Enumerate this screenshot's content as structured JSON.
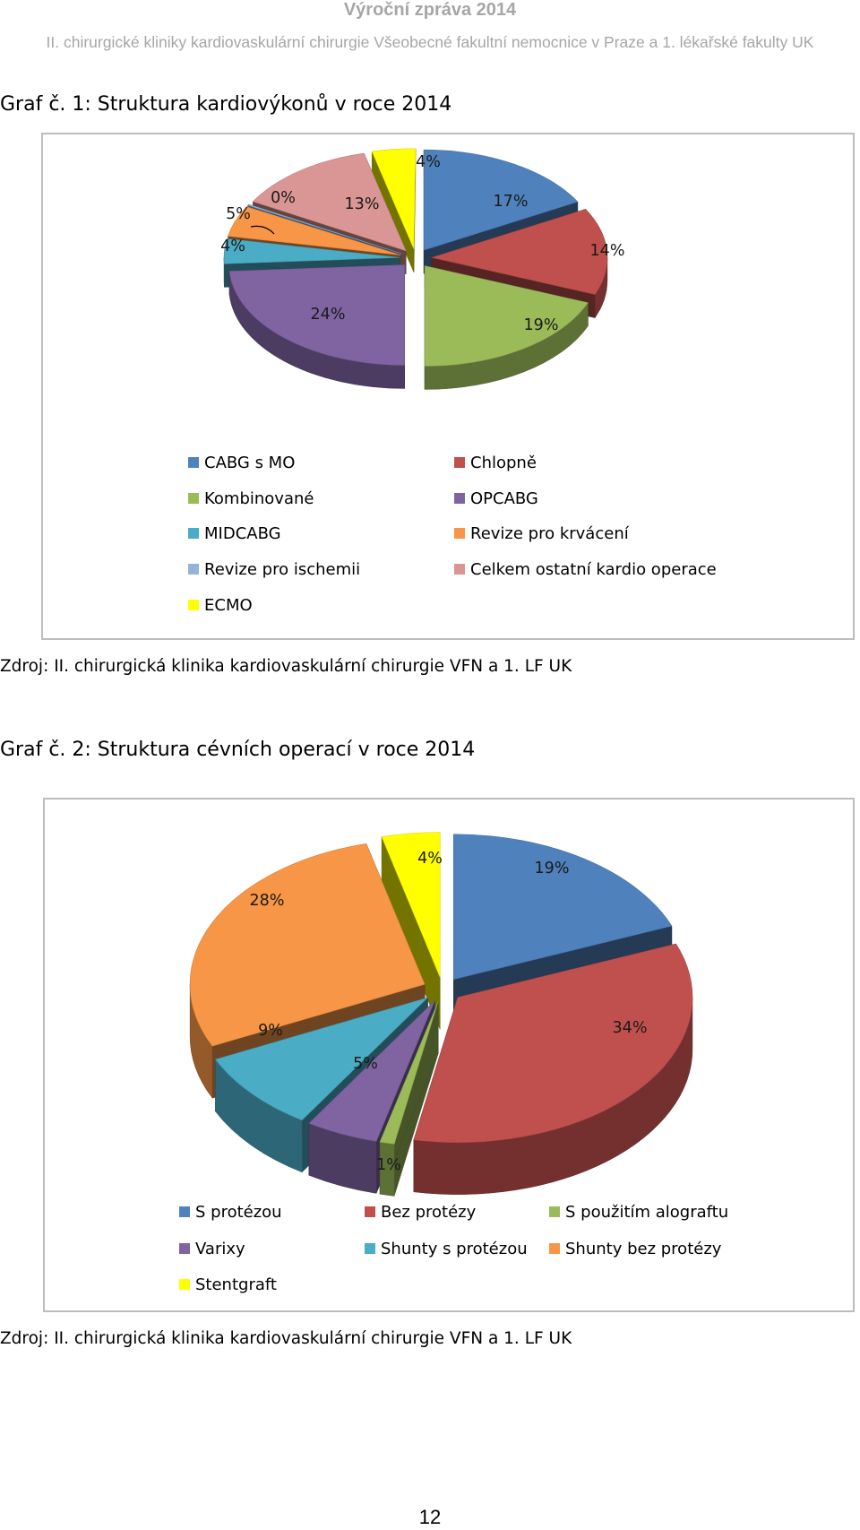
{
  "header": {
    "title": "Výroční zpráva 2014",
    "subtitle": "II. chirurgické kliniky kardiovaskulární chirurgie Všeobecné fakultní nemocnice v Praze a 1. lékařské fakulty UK"
  },
  "chart1": {
    "caption": "Graf č. 1: Struktura kardiovýkonů v roce 2014",
    "source": "Zdroj: II. chirurgická klinika kardiovaskulární chirurgie VFN a 1. LF UK"
  },
  "chart2": {
    "caption": "Graf č. 2: Struktura cévních operací v roce 2014",
    "source": "Zdroj: II. chirurgická klinika kardiovaskulární chirurgie VFN a 1. LF UK"
  },
  "page_number": "12",
  "chart_data": [
    {
      "type": "pie",
      "style": "3d-exploded",
      "title": "Graf č. 1: Struktura kardiovýkonů v roce 2014",
      "legend_position": "bottom",
      "categories": [
        "CABG s MO",
        "Chlopně",
        "Kombinované",
        "OPCABG",
        "MIDCABG",
        "Revize pro krvácení",
        "Revize pro ischemii",
        "Celkem ostatní kardio operace",
        "ECMO"
      ],
      "values": [
        17,
        14,
        19,
        24,
        4,
        5,
        0,
        13,
        4
      ],
      "labels": [
        "17%",
        "14%",
        "19%",
        "24%",
        "4%",
        "5%",
        "0%",
        "13%",
        "4%"
      ],
      "colors": [
        "#4f81bd",
        "#c0504d",
        "#9bbb59",
        "#8064a2",
        "#4bacc6",
        "#f79646",
        "#95b3d7",
        "#d99694",
        "#ffff00"
      ]
    },
    {
      "type": "pie",
      "style": "3d-exploded",
      "title": "Graf č. 2: Struktura cévních operací v roce 2014",
      "legend_position": "bottom",
      "categories": [
        "S protézou",
        "Bez protézy",
        "S použitím alograftu",
        "Varixy",
        "Shunty s protézou",
        "Shunty bez protézy",
        "Stentgraft"
      ],
      "values": [
        19,
        34,
        1,
        5,
        9,
        28,
        4
      ],
      "labels": [
        "19%",
        "34%",
        "1%",
        "5%",
        "9%",
        "28%",
        "4%"
      ],
      "colors": [
        "#4f81bd",
        "#c0504d",
        "#9bbb59",
        "#8064a2",
        "#4bacc6",
        "#f79646",
        "#ffff00"
      ]
    }
  ]
}
